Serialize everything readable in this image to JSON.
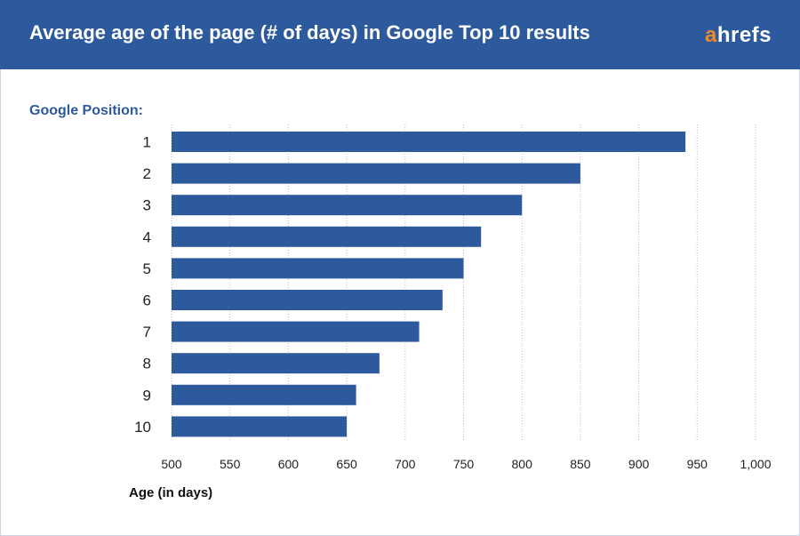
{
  "header": {
    "title": "Average age of the page (# of days) in Google Top 10 results",
    "logo": {
      "a": "a",
      "rest": "hrefs"
    }
  },
  "colors": {
    "header": "#2d5a9c",
    "bar": "#2d5a9c",
    "logo_accent": "#f08a24"
  },
  "chart_data": {
    "type": "bar",
    "orientation": "horizontal",
    "title": "Average age of the page (# of days) in Google Top 10 results",
    "ylabel": "Google Position:",
    "xlabel": "Age (in days)",
    "categories": [
      "1",
      "2",
      "3",
      "4",
      "5",
      "6",
      "7",
      "8",
      "9",
      "10"
    ],
    "values": [
      940,
      850,
      800,
      765,
      750,
      732,
      712,
      678,
      658,
      650
    ],
    "xlim": [
      500,
      1000
    ],
    "xticks": [
      500,
      550,
      600,
      650,
      700,
      750,
      800,
      850,
      900,
      950,
      1000
    ],
    "xtick_labels": [
      "500",
      "550",
      "600",
      "650",
      "700",
      "750",
      "800",
      "850",
      "900",
      "950",
      "1,000"
    ],
    "grid": "vertical dotted"
  }
}
